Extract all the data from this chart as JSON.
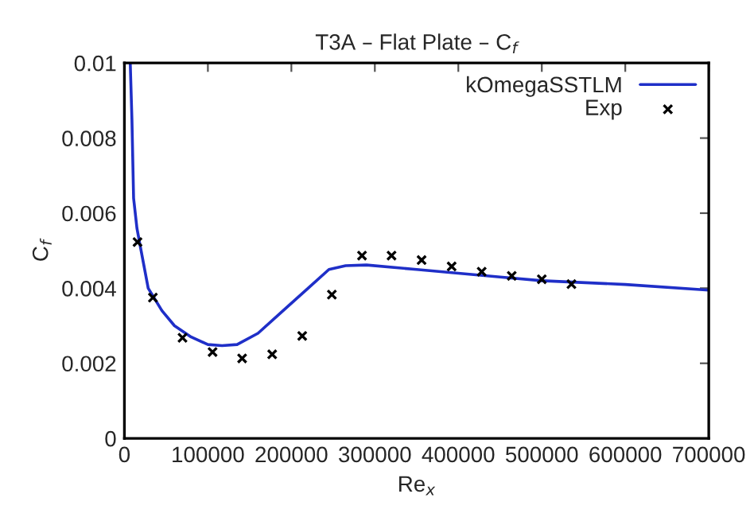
{
  "chart_data": {
    "type": "line",
    "title": "T3A – Flat Plate – C$_{f}$",
    "xlabel": "Re$_{x}$",
    "ylabel": "C$_{f}$",
    "xlim": [
      0,
      700000
    ],
    "ylim": [
      0,
      0.01
    ],
    "xticks": [
      0,
      100000,
      200000,
      300000,
      400000,
      500000,
      600000,
      700000
    ],
    "yticks": [
      0,
      0.002,
      0.004,
      0.006,
      0.008,
      0.01
    ],
    "grid": false,
    "legend": "top right",
    "series": [
      {
        "name": "kOmegaSSTLM",
        "color": "#1f2fc8",
        "marker": "none",
        "line_style": "solid",
        "x": [
          7000,
          9000,
          11000,
          15000,
          20000,
          28500,
          45000,
          60000,
          80000,
          100000,
          117000,
          135000,
          160000,
          190000,
          220000,
          245000,
          265000,
          290000,
          350000,
          400000,
          450000,
          500000,
          600000,
          700000
        ],
        "values": [
          0.01,
          0.0085,
          0.0064,
          0.0056,
          0.005,
          0.004,
          0.0034,
          0.003,
          0.0027,
          0.0025,
          0.00247,
          0.0025,
          0.0028,
          0.0034,
          0.004,
          0.0045,
          0.0046,
          0.00462,
          0.0045,
          0.0044,
          0.0043,
          0.0042,
          0.0041,
          0.00395
        ]
      },
      {
        "name": "Exp",
        "type": "scatter",
        "color": "#000000",
        "marker": "cross",
        "x": [
          15700,
          34100,
          69600,
          105600,
          141000,
          177000,
          213000,
          248500,
          284600,
          320000,
          356000,
          392000,
          428000,
          464000,
          500000,
          535500
        ],
        "values": [
          0.00523,
          0.00375,
          0.00268,
          0.0023,
          0.00213,
          0.00224,
          0.00273,
          0.00383,
          0.00487,
          0.00487,
          0.00475,
          0.00458,
          0.00444,
          0.00433,
          0.00424,
          0.00411
        ]
      }
    ]
  }
}
